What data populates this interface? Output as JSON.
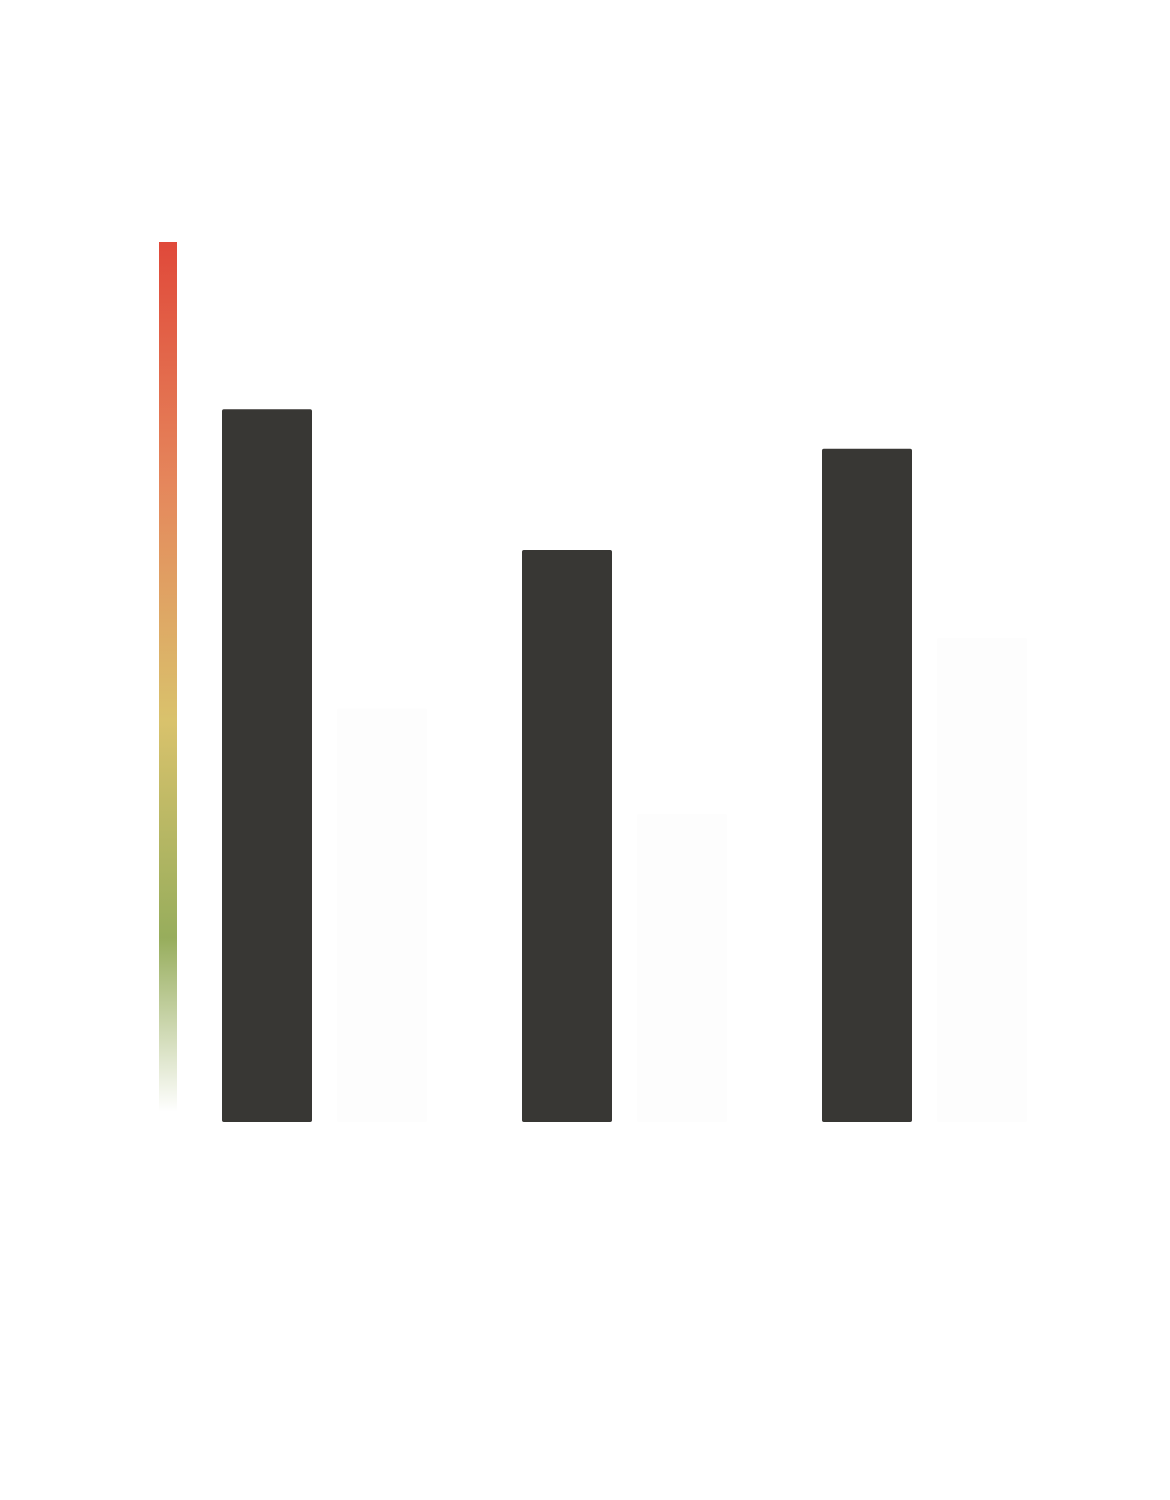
{
  "chart_data": {
    "type": "bar",
    "title": "",
    "xlabel": "",
    "ylabel": "",
    "ylim": [
      0,
      100
    ],
    "grid": false,
    "legend": "none",
    "categories": [
      "",
      "",
      ""
    ],
    "series": [
      {
        "values": [
          81,
          65,
          76.5
        ],
        "color": "#383734"
      },
      {
        "values": [
          47,
          35,
          55
        ],
        "color": "#fdfdfd"
      }
    ],
    "scale_bar": {
      "colors": [
        "#e0493a",
        "#e5875c",
        "#d9c26c",
        "#97ad5c",
        "#ffffff"
      ]
    }
  }
}
